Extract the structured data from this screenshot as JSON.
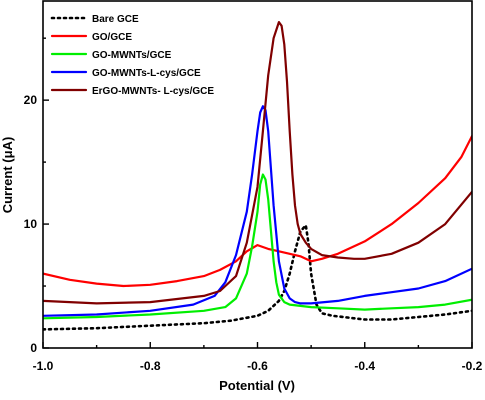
{
  "chart_data": {
    "type": "line",
    "title": "",
    "xlabel": "Potential (V)",
    "ylabel": "Current (μA)",
    "xlim": [
      -1.0,
      -0.2
    ],
    "ylim": [
      0,
      28
    ],
    "xticks": [
      -1.0,
      -0.8,
      -0.6,
      -0.4,
      -0.2
    ],
    "xtick_labels": [
      "-1.0",
      "-0.8",
      "-0.6",
      "-0.4",
      "-0.2"
    ],
    "yticks": [
      0,
      10,
      20
    ],
    "ytick_labels": [
      "0",
      "10",
      "20"
    ],
    "grid": false,
    "legend_position": "top-left",
    "series": [
      {
        "name": "Bare GCE",
        "color": "#000000",
        "style": "dotted",
        "x": [
          -1.0,
          -0.9,
          -0.8,
          -0.7,
          -0.65,
          -0.6,
          -0.58,
          -0.56,
          -0.55,
          -0.54,
          -0.53,
          -0.52,
          -0.51,
          -0.505,
          -0.5,
          -0.49,
          -0.48,
          -0.46,
          -0.44,
          -0.42,
          -0.4,
          -0.35,
          -0.3,
          -0.25,
          -0.2
        ],
        "y": [
          1.5,
          1.6,
          1.8,
          2.0,
          2.2,
          2.6,
          3.0,
          3.8,
          4.6,
          6.0,
          7.8,
          9.4,
          9.9,
          8.5,
          6.0,
          3.5,
          2.8,
          2.6,
          2.5,
          2.4,
          2.3,
          2.3,
          2.5,
          2.7,
          3.0
        ]
      },
      {
        "name": "GO/GCE",
        "color": "#ff0000",
        "style": "solid",
        "x": [
          -1.0,
          -0.95,
          -0.9,
          -0.85,
          -0.8,
          -0.75,
          -0.7,
          -0.67,
          -0.64,
          -0.62,
          -0.6,
          -0.58,
          -0.56,
          -0.54,
          -0.52,
          -0.5,
          -0.48,
          -0.45,
          -0.4,
          -0.35,
          -0.3,
          -0.25,
          -0.22,
          -0.2
        ],
        "y": [
          6.0,
          5.5,
          5.2,
          5.0,
          5.1,
          5.4,
          5.8,
          6.3,
          7.0,
          7.8,
          8.3,
          8.0,
          7.8,
          7.6,
          7.4,
          7.0,
          7.2,
          7.6,
          8.6,
          10.0,
          11.7,
          13.7,
          15.4,
          17.1
        ]
      },
      {
        "name": "GO-MWNTs/GCE",
        "color": "#00ee00",
        "style": "solid",
        "x": [
          -1.0,
          -0.9,
          -0.8,
          -0.7,
          -0.66,
          -0.64,
          -0.62,
          -0.61,
          -0.6,
          -0.595,
          -0.59,
          -0.585,
          -0.58,
          -0.575,
          -0.57,
          -0.565,
          -0.56,
          -0.55,
          -0.54,
          -0.52,
          -0.5,
          -0.45,
          -0.4,
          -0.35,
          -0.3,
          -0.25,
          -0.2
        ],
        "y": [
          2.4,
          2.5,
          2.7,
          3.0,
          3.3,
          4.0,
          6.0,
          8.2,
          11.0,
          13.2,
          14.0,
          13.6,
          12.0,
          9.5,
          7.0,
          5.3,
          4.3,
          3.7,
          3.5,
          3.4,
          3.3,
          3.2,
          3.1,
          3.2,
          3.3,
          3.5,
          3.9
        ]
      },
      {
        "name": "GO-MWNTs-L-cys/GCE",
        "color": "#0000ff",
        "style": "solid",
        "x": [
          -1.0,
          -0.9,
          -0.8,
          -0.72,
          -0.68,
          -0.66,
          -0.64,
          -0.62,
          -0.61,
          -0.6,
          -0.595,
          -0.59,
          -0.585,
          -0.58,
          -0.575,
          -0.57,
          -0.56,
          -0.55,
          -0.54,
          -0.53,
          -0.52,
          -0.5,
          -0.45,
          -0.4,
          -0.35,
          -0.3,
          -0.25,
          -0.2
        ],
        "y": [
          2.6,
          2.7,
          3.0,
          3.5,
          4.2,
          5.3,
          7.5,
          11.0,
          14.0,
          17.5,
          19.0,
          19.5,
          19.2,
          17.5,
          14.5,
          11.5,
          7.0,
          4.8,
          4.0,
          3.7,
          3.6,
          3.6,
          3.8,
          4.2,
          4.5,
          4.8,
          5.4,
          6.4
        ]
      },
      {
        "name": "ErGO-MWNTs- L-cys/GCE",
        "color": "#800000",
        "style": "solid",
        "x": [
          -1.0,
          -0.9,
          -0.8,
          -0.7,
          -0.67,
          -0.64,
          -0.62,
          -0.6,
          -0.59,
          -0.58,
          -0.57,
          -0.56,
          -0.555,
          -0.55,
          -0.545,
          -0.54,
          -0.535,
          -0.53,
          -0.525,
          -0.52,
          -0.51,
          -0.5,
          -0.48,
          -0.45,
          -0.42,
          -0.4,
          -0.35,
          -0.3,
          -0.25,
          -0.2
        ],
        "y": [
          3.8,
          3.6,
          3.7,
          4.2,
          4.6,
          5.8,
          8.5,
          13.0,
          17.5,
          22.0,
          25.0,
          26.3,
          26.0,
          24.5,
          21.5,
          17.5,
          14.0,
          11.5,
          10.0,
          9.2,
          8.5,
          8.0,
          7.5,
          7.3,
          7.2,
          7.2,
          7.6,
          8.5,
          10.0,
          12.6
        ]
      }
    ]
  }
}
